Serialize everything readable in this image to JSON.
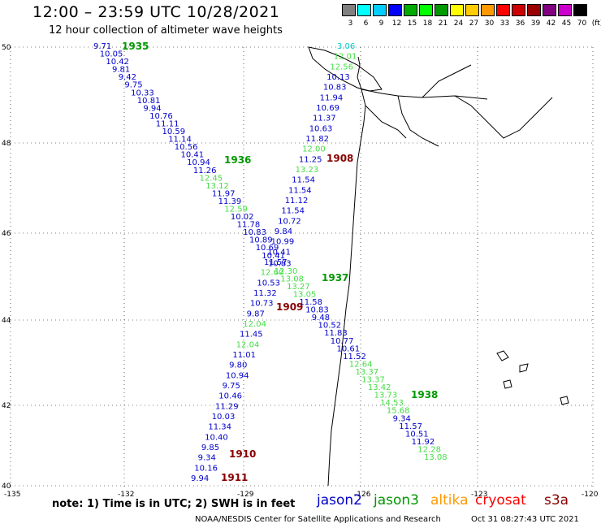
{
  "title": "12:00 – 23:59 UTC 10/28/2021",
  "subtitle": "12 hour collection of altimeter wave heights",
  "scale": {
    "labels": [
      "3",
      "6",
      "9",
      "12",
      "15",
      "18",
      "21",
      "24",
      "27",
      "30",
      "33",
      "36",
      "39",
      "42",
      "45",
      "70",
      "(ft)"
    ],
    "colors": [
      "#808080",
      "#00ffff",
      "#00ccff",
      "#0000ff",
      "#00aa00",
      "#00ff00",
      "#009900",
      "#ffff00",
      "#ffcc00",
      "#ff9900",
      "#ff0000",
      "#cc0000",
      "#990000",
      "#800080",
      "#cc00cc",
      "#000000"
    ]
  },
  "axes": {
    "lat_labels": [
      "50",
      "48",
      "46",
      "44",
      "42",
      "40"
    ],
    "lon_labels": [
      "-135",
      "-132",
      "-129",
      "-126",
      "-123",
      "-120"
    ]
  },
  "track_labels": [
    {
      "text": "1935",
      "color": "#009900"
    },
    {
      "text": "1936",
      "color": "#009900"
    },
    {
      "text": "1937",
      "color": "#009900"
    },
    {
      "text": "1938",
      "color": "#009900"
    },
    {
      "text": "1908",
      "color": "#880000"
    },
    {
      "text": "1909",
      "color": "#880000"
    },
    {
      "text": "1910",
      "color": "#880000"
    },
    {
      "text": "1911",
      "color": "#880000"
    }
  ],
  "observations": {
    "track1_jason3_nw_se": [
      "9.71",
      "10.05",
      "10.42",
      "9.81",
      "9.42",
      "9.75",
      "10.33",
      "10.81",
      "9.94",
      "10.76",
      "11.11",
      "10.59",
      "11.14",
      "10.56",
      "10.41",
      "10.94",
      "11.26",
      "12.45",
      "13.12",
      "11.97",
      "11.39",
      "12.59",
      "10.02",
      "11.78",
      "10.83",
      "10.89",
      "10.69",
      "10.41",
      "10.83",
      "12.30",
      "13.08",
      "13.27",
      "13.05",
      "11.58",
      "10.83",
      "9.48",
      "10.52",
      "11.83",
      "10.77",
      "10.61",
      "11.52",
      "12.64",
      "13.37",
      "13.37",
      "13.42",
      "13.73",
      "14.53",
      "15.68",
      "9.34",
      "11.57",
      "10.51",
      "11.92",
      "12.28",
      "13.08"
    ],
    "track2_jason2_n_s": [
      "3.06",
      "12.01",
      "12.56",
      "10.13",
      "10.83",
      "11.94",
      "10.69",
      "11.37",
      "10.63",
      "11.82",
      "12.00",
      "11.25",
      "13.23",
      "11.54",
      "11.54",
      "11.12",
      "11.54",
      "10.72",
      "9.84",
      "10.99",
      "10.41",
      "11.57",
      "12.60",
      "10.53",
      "11.32",
      "10.73",
      "9.87",
      "12.04",
      "11.45",
      "12.04",
      "11.01",
      "9.80",
      "10.94",
      "9.75",
      "10.46",
      "11.29",
      "10.03",
      "11.34",
      "10.40",
      "9.85",
      "9.34",
      "10.16",
      "9.94"
    ]
  },
  "note": "note:  1) Time is in UTC;  2) SWH is in feet",
  "satellites": [
    {
      "name": "jason2",
      "color": "#0000cc"
    },
    {
      "name": "jason3",
      "color": "#009900"
    },
    {
      "name": "altika",
      "color": "#ff9900"
    },
    {
      "name": "cryosat",
      "color": "#ff0000"
    },
    {
      "name": "s3a",
      "color": "#880000"
    }
  ],
  "credit": "NOAA/NESDIS Center for Satellite Applications and Research",
  "timestamp": "Oct 31 08:27:43 UTC 2021"
}
